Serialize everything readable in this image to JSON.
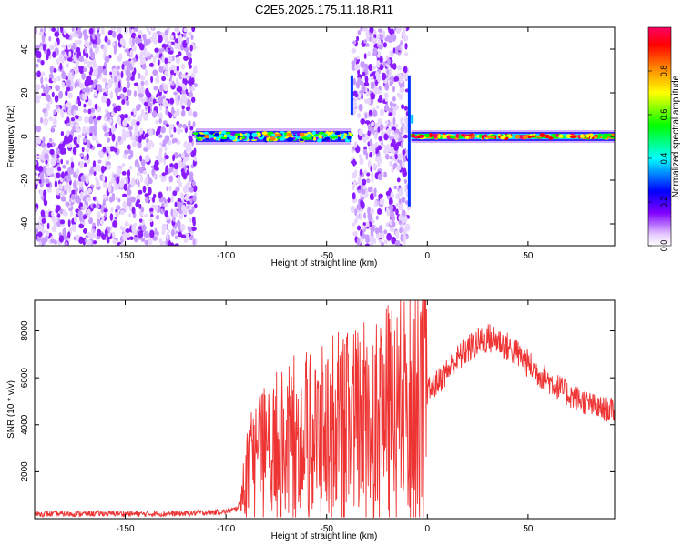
{
  "chart_data": [
    {
      "type": "heatmap",
      "title": "C2E5.2025.175.11.18.R11",
      "xlabel": "Height of straight line (km)",
      "ylabel": "Frequency (Hz)",
      "xlim": [
        -195,
        93
      ],
      "ylim": [
        -50,
        50
      ],
      "x_ticks": [
        -150,
        -100,
        -50,
        0,
        50
      ],
      "y_ticks": [
        -40,
        -20,
        0,
        20,
        40
      ],
      "colorbar": {
        "label": "Normalized spectral amplitude",
        "range": [
          0,
          1
        ],
        "ticks": [
          0.0,
          0.2,
          0.4,
          0.6,
          0.8
        ],
        "colormap": [
          "#ffffff",
          "#d9b3ff",
          "#8000ff",
          "#0000ff",
          "#00ffff",
          "#00ff00",
          "#ffff00",
          "#ff8000",
          "#ff0000",
          "#ff0066"
        ]
      },
      "regions": [
        {
          "x": [
            -195,
            -115
          ],
          "description": "broadband noise",
          "level": 0.25
        },
        {
          "x": [
            -115,
            -38
          ],
          "description": "signal band near 0 Hz",
          "level": 0.45
        },
        {
          "x": [
            -37,
            -9
          ],
          "description": "broadband noise",
          "level": 0.25
        },
        {
          "x": [
            -8,
            93
          ],
          "description": "narrow signal at 0 Hz",
          "level": 0.7
        }
      ]
    },
    {
      "type": "line",
      "xlabel": "Height of straight line (km)",
      "ylabel": "SNR (10 * v/v)",
      "xlim": [
        -195,
        93
      ],
      "ylim": [
        0,
        9300
      ],
      "x_ticks": [
        -150,
        -100,
        -50,
        0,
        50
      ],
      "y_ticks": [
        2000,
        4000,
        6000,
        8000
      ],
      "series": [
        {
          "color": "#ee3333",
          "x": [
            -195,
            -180,
            -160,
            -140,
            -120,
            -100,
            -95,
            -92,
            -90,
            -85,
            -80,
            -75,
            -70,
            -65,
            -60,
            -55,
            -50,
            -45,
            -40,
            -35,
            -30,
            -25,
            -20,
            -15,
            -10,
            -5,
            0,
            5,
            10,
            15,
            20,
            25,
            30,
            35,
            40,
            45,
            50,
            55,
            60,
            65,
            70,
            75,
            80,
            85,
            93
          ],
          "y": [
            200,
            200,
            220,
            200,
            220,
            300,
            400,
            800,
            1800,
            2500,
            2800,
            3000,
            3100,
            3200,
            3300,
            3400,
            3500,
            3600,
            3800,
            4000,
            4200,
            4300,
            4400,
            4500,
            4700,
            5000,
            5400,
            5800,
            6300,
            6800,
            7200,
            7500,
            7700,
            7600,
            7300,
            7000,
            6600,
            6200,
            5900,
            5600,
            5300,
            5100,
            4900,
            4700,
            4600
          ]
        }
      ]
    }
  ]
}
